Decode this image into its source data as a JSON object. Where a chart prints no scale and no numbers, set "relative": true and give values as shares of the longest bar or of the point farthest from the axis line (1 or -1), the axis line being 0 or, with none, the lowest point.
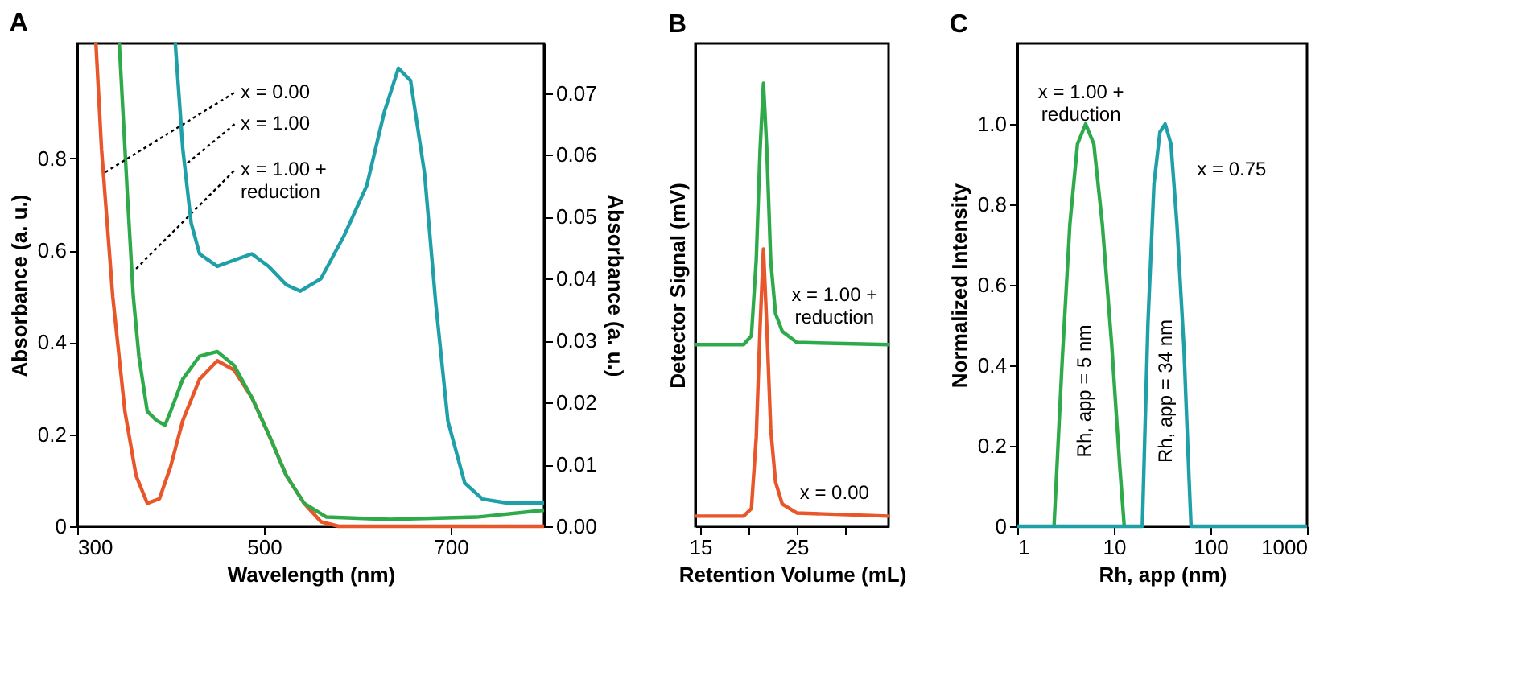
{
  "chart_data": [
    {
      "type": "line",
      "title": "A",
      "xlabel": "Wavelength (nm)",
      "ylabel": "Absorbance (a. u.)",
      "y2label": "Absorbance (a. u.)",
      "xlim": [
        300,
        800
      ],
      "xticks": [
        300,
        500,
        700
      ],
      "ylim": [
        0,
        1.05
      ],
      "yticks": [
        0,
        0.2,
        0.4,
        0.6,
        0.8
      ],
      "y2lim": [
        0,
        0.078
      ],
      "y2ticks": [
        {
          "value": 0,
          "label": "0.00"
        },
        {
          "value": 0.01,
          "label": "0.01"
        },
        {
          "value": 0.02,
          "label": "0.02"
        },
        {
          "value": 0.03,
          "label": "0.03"
        },
        {
          "value": 0.04,
          "label": "0.04"
        },
        {
          "value": 0.05,
          "label": "0.05"
        },
        {
          "value": 0.06,
          "label": "0.06"
        },
        {
          "value": 0.07,
          "label": "0.07"
        }
      ],
      "grid": false,
      "line_style": "solid",
      "marker": "none",
      "series": [
        {
          "color": "#e8562a",
          "x": [
            320,
            326,
            338,
            351,
            363,
            375,
            388,
            400,
            413,
            431,
            450,
            468,
            487,
            505,
            524,
            543,
            561,
            580,
            800
          ],
          "values": [
            1.05,
            0.82,
            0.5,
            0.25,
            0.11,
            0.05,
            0.06,
            0.13,
            0.23,
            0.32,
            0.36,
            0.34,
            0.28,
            0.2,
            0.11,
            0.05,
            0.01,
            0.0,
            0.0
          ]
        },
        {
          "color": "#1fa0a8",
          "axis": "y2",
          "x": [
            405,
            413,
            422,
            431,
            450,
            468,
            487,
            505,
            524,
            539,
            561,
            586,
            610,
            629,
            644,
            657,
            672,
            684,
            697,
            715,
            734,
            759,
            800
          ],
          "values": [
            0.078,
            0.061,
            0.049,
            0.044,
            0.042,
            0.043,
            0.044,
            0.042,
            0.039,
            0.038,
            0.04,
            0.047,
            0.055,
            0.067,
            0.074,
            0.072,
            0.057,
            0.036,
            0.017,
            0.007,
            0.0044,
            0.0038,
            0.0038
          ]
        },
        {
          "color": "#2eaa4a",
          "x": [
            345,
            354,
            360,
            366,
            375,
            385,
            394,
            400,
            413,
            431,
            450,
            468,
            487,
            505,
            524,
            543,
            567,
            635,
            728,
            800
          ],
          "values": [
            1.05,
            0.71,
            0.5,
            0.37,
            0.25,
            0.23,
            0.22,
            0.25,
            0.32,
            0.37,
            0.38,
            0.35,
            0.28,
            0.2,
            0.11,
            0.05,
            0.02,
            0.015,
            0.02,
            0.035
          ]
        }
      ],
      "annotations": [
        {
          "text": "x = 0.00",
          "x": 330,
          "y": 0.77
        },
        {
          "text": "x = 1.00",
          "x": 418,
          "y": 0.79
        },
        {
          "text": "x = 1.00 +\nreduction",
          "x": 363,
          "y": 0.56
        }
      ]
    },
    {
      "type": "line",
      "title": "B",
      "xlabel": "Retention Volume (mL)",
      "ylabel": "Detector Signal (mV)",
      "relative": true,
      "xlim": [
        14.5,
        34.5
      ],
      "xticks": [
        15,
        {
          "value": 20,
          "label": null
        },
        25,
        {
          "value": 30,
          "label": null
        }
      ],
      "grid": false,
      "line_style": "solid",
      "marker": "none",
      "series": [
        {
          "color": "#2eaa4a",
          "x": [
            14.5,
            19.5,
            20.3,
            20.8,
            21.2,
            21.55,
            21.9,
            22.3,
            22.8,
            23.5,
            25,
            34.5
          ],
          "values": [
            0.41,
            0.41,
            0.43,
            0.6,
            0.85,
            1.0,
            0.85,
            0.6,
            0.48,
            0.44,
            0.415,
            0.41
          ]
        },
        {
          "color": "#e8562a",
          "x": [
            14.5,
            19.5,
            20.3,
            20.8,
            21.2,
            21.55,
            21.9,
            22.3,
            22.8,
            23.5,
            25,
            34.5
          ],
          "values": [
            0.023,
            0.023,
            0.04,
            0.2,
            0.45,
            0.626,
            0.45,
            0.22,
            0.1,
            0.05,
            0.03,
            0.023
          ]
        }
      ],
      "annotations": [
        "x = 1.00 +\nreduction",
        "x = 0.00"
      ]
    },
    {
      "type": "line",
      "title": "C",
      "xlabel": "Rh, app (nm)",
      "ylabel": "Normalized Intensity",
      "log": "x",
      "xlim": [
        1,
        1000
      ],
      "xticks": [
        1,
        10,
        100,
        1000
      ],
      "ylim": [
        0,
        1.2
      ],
      "yticks": [
        0,
        0.2,
        0.4,
        0.6,
        0.8,
        {
          "value": 1,
          "label": "1.0"
        }
      ],
      "grid": false,
      "line_style": "solid",
      "marker": "none",
      "series": [
        {
          "color": "#2eaa4a",
          "x": [
            2.4,
            2.9,
            3.5,
            4.2,
            5.1,
            6.2,
            7.6,
            9.5,
            11.5,
            12.8
          ],
          "values": [
            0,
            0.4,
            0.75,
            0.95,
            1.0,
            0.95,
            0.75,
            0.45,
            0.15,
            0
          ]
        },
        {
          "color": "#1fa0a8",
          "x": [
            1,
            19.7,
            22.5,
            26,
            30,
            34,
            39,
            45,
            53,
            60,
            63,
            1000
          ],
          "values": [
            0,
            0,
            0.5,
            0.85,
            0.98,
            1.0,
            0.95,
            0.75,
            0.45,
            0.12,
            0,
            0
          ]
        }
      ],
      "annotations": [
        "x = 1.00 +\nreduction",
        "x = 0.75",
        "Rh, app = 5 nm",
        "Rh, app = 34 nm"
      ]
    }
  ]
}
